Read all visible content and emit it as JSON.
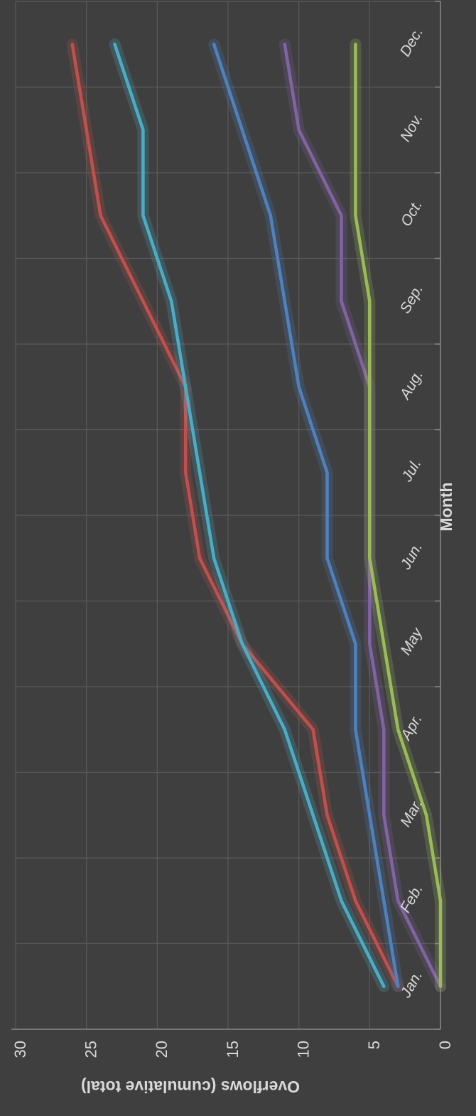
{
  "chart_data": {
    "type": "line",
    "orientation": "rotated 90 degrees clockwise (y axis runs left-to-right along the bottom, months run bottom-to-top)",
    "xlabel": "Month",
    "ylabel": "Overflows (cumulative total)",
    "categories": [
      "Jan.",
      "Feb.",
      "Mar.",
      "Apr.",
      "May",
      "Jun.",
      "Jul.",
      "Aug.",
      "Sep.",
      "Oct.",
      "Nov.",
      "Dec."
    ],
    "ylim": [
      0,
      30
    ],
    "yticks": [
      "0",
      "5",
      "10",
      "15",
      "20",
      "25",
      "30"
    ],
    "grid": true,
    "legend": "none",
    "series": [
      {
        "color": "#c0504d",
        "values": [
          3,
          6,
          8,
          9,
          14,
          17,
          18,
          18,
          21,
          24,
          25,
          26
        ]
      },
      {
        "color": "#4bacc6",
        "values": [
          4,
          7,
          9,
          11,
          14,
          16,
          17,
          18,
          19,
          21,
          21,
          23
        ]
      },
      {
        "color": "#4f81bd",
        "values": [
          3,
          4,
          5,
          6,
          6,
          8,
          8,
          10,
          11,
          12,
          14,
          16
        ]
      },
      {
        "color": "#8064a2",
        "values": [
          0,
          3,
          4,
          4,
          5,
          5,
          5,
          5,
          7,
          7,
          10,
          11
        ]
      },
      {
        "color": "#9bbb59",
        "values": [
          0,
          0,
          1,
          3,
          4,
          5,
          5,
          5,
          5,
          6,
          6,
          6
        ]
      }
    ]
  }
}
